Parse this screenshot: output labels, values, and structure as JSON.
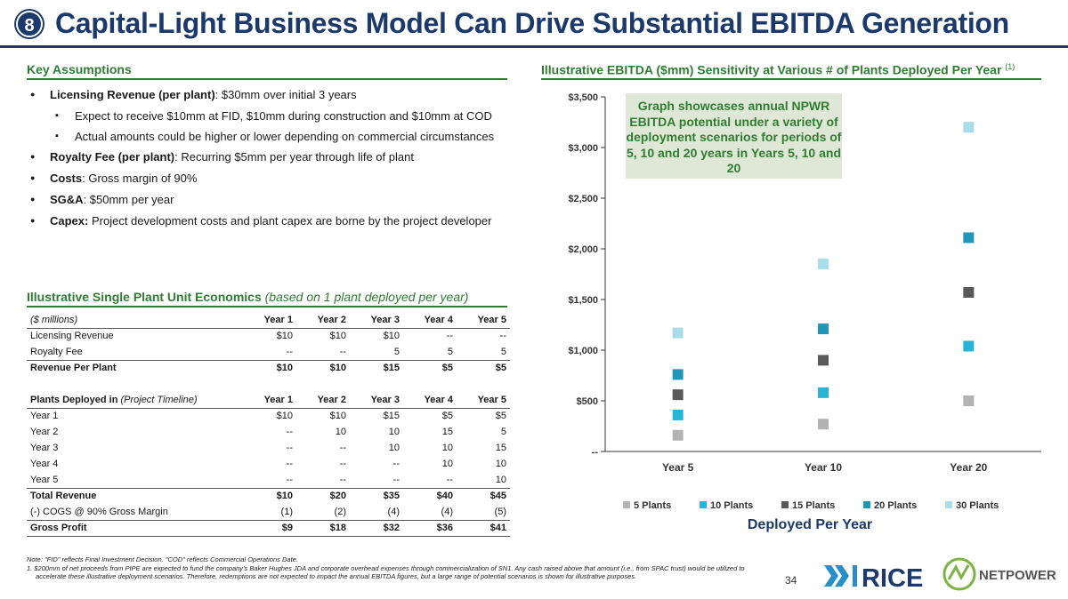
{
  "header": {
    "badge": "8",
    "title": "Capital-Light Business Model Can Drive Substantial EBITDA Generation"
  },
  "assumptions": {
    "title": "Key Assumptions",
    "items": [
      {
        "label": "Licensing Revenue (per plant)",
        "text": ": $30mm over initial 3 years"
      },
      {
        "sub1": "Expect to receive $10mm at FID, $10mm during construction and $10mm at COD"
      },
      {
        "sub2": "Actual amounts could be higher or lower depending on commercial circumstances"
      },
      {
        "label": "Royalty Fee (per plant)",
        "text": ": Recurring $5mm per year through life of plant"
      },
      {
        "label": "Costs",
        "text": ": Gross margin of 90%"
      },
      {
        "label": "SG&A",
        "text": ": $50mm per year"
      },
      {
        "label": "Capex:",
        "text": " Project development costs and plant capex are borne by the project developer"
      }
    ]
  },
  "unit_econ": {
    "title": "Illustrative Single Plant Unit Economics",
    "subtitle": "(based on 1 plant deployed per year)",
    "header1": [
      "($ millions)",
      "Year 1",
      "Year 2",
      "Year 3",
      "Year 4",
      "Year 5"
    ],
    "rows1": [
      [
        "Licensing Revenue",
        "$10",
        "$10",
        "$10",
        "--",
        "--"
      ],
      [
        "Royalty Fee",
        "--",
        "--",
        "5",
        "5",
        "5"
      ],
      [
        "Revenue Per Plant",
        "$10",
        "$10",
        "$15",
        "$5",
        "$5"
      ]
    ],
    "header2_label": "Plants Deployed in",
    "header2_italic": "(Project Timeline)",
    "header2": [
      "Year 1",
      "Year 2",
      "Year 3",
      "Year 4",
      "Year 5"
    ],
    "rows2": [
      [
        "Year 1",
        "$10",
        "$10",
        "$15",
        "$5",
        "$5"
      ],
      [
        "Year 2",
        "--",
        "10",
        "10",
        "15",
        "5"
      ],
      [
        "Year 3",
        "--",
        "--",
        "10",
        "10",
        "15"
      ],
      [
        "Year 4",
        "--",
        "--",
        "--",
        "10",
        "10"
      ],
      [
        "Year 5",
        "--",
        "--",
        "--",
        "--",
        "10"
      ]
    ],
    "total": [
      "Total Revenue",
      "$10",
      "$20",
      "$35",
      "$40",
      "$45"
    ],
    "cogs": [
      "(-) COGS @ 90% Gross Margin",
      "(1)",
      "(2)",
      "(4)",
      "(4)",
      "(5)"
    ],
    "gross": [
      "Gross Profit",
      "$9",
      "$18",
      "$32",
      "$36",
      "$41"
    ]
  },
  "chart_section": {
    "title": "Illustrative EBITDA ($mm) Sensitivity at Various # of Plants Deployed Per Year",
    "sup": "(1)"
  },
  "callout": "Graph showcases annual NPWR EBITDA potential under a variety of deployment scenarios for periods of 5, 10 and 20 years in Years 5, 10 and 20",
  "chart_data": {
    "type": "scatter",
    "categories": [
      "Year 5",
      "Year 10",
      "Year 20"
    ],
    "ylim": [
      0,
      3500
    ],
    "yticks": [
      0,
      500,
      1000,
      1500,
      2000,
      2500,
      3000,
      3500
    ],
    "ytick_labels": [
      "--",
      "$500",
      "$1,000",
      "$1,500",
      "$2,000",
      "$2,500",
      "$3,000",
      "$3,500"
    ],
    "xlabel": "Deployed Per Year",
    "legend_position": "bottom",
    "series": [
      {
        "name": "5 Plants",
        "color": "#b3b3b3",
        "values": [
          160,
          270,
          500
        ]
      },
      {
        "name": "10 Plants",
        "color": "#26b5d6",
        "values": [
          360,
          580,
          1040
        ]
      },
      {
        "name": "15 Plants",
        "color": "#595959",
        "values": [
          560,
          900,
          1570
        ]
      },
      {
        "name": "20 Plants",
        "color": "#2196b8",
        "values": [
          760,
          1210,
          2110
        ]
      },
      {
        "name": "30 Plants",
        "color": "#a9dde9",
        "values": [
          1170,
          1850,
          3200
        ]
      }
    ]
  },
  "footnote": {
    "note": "Note: \"FID\" reflects Final Investment Decision. \"COD\" reflects Commercial Operations Date.",
    "fn1": "1.  $200mm of net proceeds from PIPE are expected to fund the company's Baker Hughes JDA and corporate overhead expenses through commercialization of SN1. Any cash raised above that amount (i.e., from SPAC trust) would be utilized to accelerate these illustrative deployment scenarios. Therefore, redemptions are not expected to impact the annual EBITDA figures, but a large range of potential scenarios is shown for illustrative purposes."
  },
  "page_number": "34",
  "logos": {
    "rice": "RICE",
    "netpower": "NETPOWER"
  }
}
